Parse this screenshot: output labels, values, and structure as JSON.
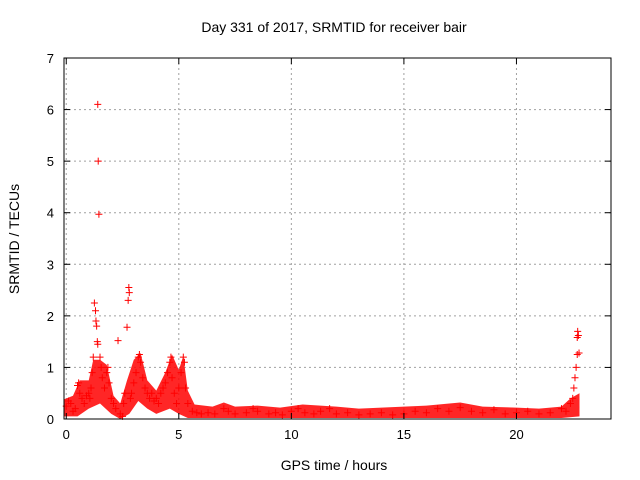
{
  "chart_data": {
    "type": "scatter",
    "title": "Day 331 of 2017, SRMTID for receiver bair",
    "xlabel": "GPS time / hours",
    "ylabel": "SRMTID / TECUs",
    "xlim": [
      -0.1,
      24.2
    ],
    "ylim": [
      0,
      7
    ],
    "xticks": [
      0,
      5,
      10,
      15,
      20
    ],
    "yticks": [
      0,
      1,
      2,
      3,
      4,
      5,
      6,
      7
    ],
    "grid": true,
    "marker": "+",
    "color": "#ff0000",
    "series": [
      {
        "name": "SRMTID",
        "points": [
          [
            0.0,
            0.25
          ],
          [
            0.1,
            0.35
          ],
          [
            0.2,
            0.3
          ],
          [
            0.3,
            0.15
          ],
          [
            0.4,
            0.2
          ],
          [
            0.5,
            0.65
          ],
          [
            0.55,
            0.7
          ],
          [
            0.6,
            0.5
          ],
          [
            0.7,
            0.4
          ],
          [
            0.8,
            0.3
          ],
          [
            0.9,
            0.45
          ],
          [
            1.0,
            0.5
          ],
          [
            1.05,
            0.4
          ],
          [
            1.1,
            0.6
          ],
          [
            1.15,
            0.9
          ],
          [
            1.2,
            1.2
          ],
          [
            1.25,
            2.25
          ],
          [
            1.3,
            2.1
          ],
          [
            1.32,
            1.9
          ],
          [
            1.35,
            1.8
          ],
          [
            1.38,
            1.5
          ],
          [
            1.4,
            1.45
          ],
          [
            1.4,
            6.1
          ],
          [
            1.42,
            5.0
          ],
          [
            1.45,
            3.97
          ],
          [
            1.5,
            1.2
          ],
          [
            1.55,
            1.0
          ],
          [
            1.6,
            0.8
          ],
          [
            1.7,
            0.6
          ],
          [
            1.8,
            0.9
          ],
          [
            1.85,
            1.0
          ],
          [
            1.9,
            0.7
          ],
          [
            2.0,
            0.4
          ],
          [
            2.1,
            0.3
          ],
          [
            2.2,
            0.2
          ],
          [
            2.3,
            1.52
          ],
          [
            2.4,
            0.1
          ],
          [
            2.5,
            0.05
          ],
          [
            2.55,
            0.3
          ],
          [
            2.6,
            0.5
          ],
          [
            2.7,
            1.78
          ],
          [
            2.75,
            2.3
          ],
          [
            2.78,
            2.55
          ],
          [
            2.8,
            2.45
          ],
          [
            2.85,
            0.4
          ],
          [
            2.9,
            0.5
          ],
          [
            3.0,
            0.7
          ],
          [
            3.1,
            0.9
          ],
          [
            3.2,
            1.2
          ],
          [
            3.25,
            1.25
          ],
          [
            3.3,
            1.1
          ],
          [
            3.4,
            0.8
          ],
          [
            3.5,
            0.6
          ],
          [
            3.6,
            0.5
          ],
          [
            3.7,
            0.4
          ],
          [
            3.8,
            0.5
          ],
          [
            3.9,
            0.35
          ],
          [
            4.0,
            0.4
          ],
          [
            4.1,
            0.3
          ],
          [
            4.2,
            0.5
          ],
          [
            4.3,
            0.6
          ],
          [
            4.4,
            0.7
          ],
          [
            4.5,
            0.9
          ],
          [
            4.6,
            1.1
          ],
          [
            4.65,
            1.2
          ],
          [
            4.7,
            0.8
          ],
          [
            4.8,
            0.5
          ],
          [
            4.9,
            0.3
          ],
          [
            5.0,
            0.6
          ],
          [
            5.1,
            0.9
          ],
          [
            5.2,
            1.2
          ],
          [
            5.25,
            1.1
          ],
          [
            5.3,
            0.6
          ],
          [
            5.4,
            0.3
          ],
          [
            5.6,
            0.15
          ],
          [
            5.8,
            0.12
          ],
          [
            6.0,
            0.1
          ],
          [
            6.3,
            0.12
          ],
          [
            6.6,
            0.1
          ],
          [
            7.0,
            0.2
          ],
          [
            7.2,
            0.15
          ],
          [
            7.5,
            0.1
          ],
          [
            8.0,
            0.12
          ],
          [
            8.3,
            0.2
          ],
          [
            8.5,
            0.15
          ],
          [
            9.0,
            0.1
          ],
          [
            9.3,
            0.12
          ],
          [
            9.6,
            0.08
          ],
          [
            10.0,
            0.15
          ],
          [
            10.3,
            0.2
          ],
          [
            10.6,
            0.12
          ],
          [
            11.0,
            0.1
          ],
          [
            11.3,
            0.15
          ],
          [
            11.7,
            0.2
          ],
          [
            12.0,
            0.1
          ],
          [
            12.5,
            0.12
          ],
          [
            13.0,
            0.08
          ],
          [
            13.5,
            0.1
          ],
          [
            14.0,
            0.12
          ],
          [
            14.5,
            0.08
          ],
          [
            15.0,
            0.1
          ],
          [
            15.5,
            0.15
          ],
          [
            16.0,
            0.12
          ],
          [
            16.5,
            0.2
          ],
          [
            17.0,
            0.15
          ],
          [
            17.5,
            0.22
          ],
          [
            18.0,
            0.15
          ],
          [
            18.5,
            0.12
          ],
          [
            19.0,
            0.18
          ],
          [
            19.5,
            0.1
          ],
          [
            20.0,
            0.12
          ],
          [
            20.5,
            0.15
          ],
          [
            21.0,
            0.1
          ],
          [
            21.5,
            0.12
          ],
          [
            22.0,
            0.2
          ],
          [
            22.2,
            0.15
          ],
          [
            22.4,
            0.3
          ],
          [
            22.5,
            0.4
          ],
          [
            22.55,
            0.6
          ],
          [
            22.6,
            0.8
          ],
          [
            22.65,
            1.0
          ],
          [
            22.7,
            1.25
          ],
          [
            22.7,
            1.58
          ],
          [
            22.72,
            1.7
          ],
          [
            22.75,
            1.62
          ],
          [
            22.78,
            1.28
          ]
        ],
        "band_top": [
          [
            -0.1,
            0.38
          ],
          [
            0.3,
            0.45
          ],
          [
            0.6,
            0.75
          ],
          [
            1.0,
            0.75
          ],
          [
            1.2,
            1.15
          ],
          [
            1.5,
            1.15
          ],
          [
            1.8,
            1.05
          ],
          [
            2.1,
            0.45
          ],
          [
            2.4,
            0.3
          ],
          [
            2.7,
            0.75
          ],
          [
            3.0,
            1.15
          ],
          [
            3.3,
            1.28
          ],
          [
            3.6,
            0.75
          ],
          [
            4.0,
            0.55
          ],
          [
            4.4,
            0.9
          ],
          [
            4.7,
            1.25
          ],
          [
            5.0,
            0.95
          ],
          [
            5.2,
            1.22
          ],
          [
            5.4,
            0.55
          ],
          [
            5.7,
            0.28
          ],
          [
            6.5,
            0.24
          ],
          [
            7.0,
            0.32
          ],
          [
            7.5,
            0.24
          ],
          [
            8.5,
            0.26
          ],
          [
            9.5,
            0.22
          ],
          [
            10.5,
            0.28
          ],
          [
            12.0,
            0.24
          ],
          [
            13.0,
            0.2
          ],
          [
            14.0,
            0.22
          ],
          [
            15.0,
            0.24
          ],
          [
            16.0,
            0.26
          ],
          [
            17.5,
            0.32
          ],
          [
            18.5,
            0.24
          ],
          [
            20.0,
            0.22
          ],
          [
            21.0,
            0.2
          ],
          [
            22.0,
            0.24
          ],
          [
            22.4,
            0.4
          ],
          [
            22.8,
            0.5
          ]
        ],
        "band_bottom": [
          [
            -0.1,
            0.05
          ],
          [
            0.5,
            0.05
          ],
          [
            1.0,
            0.2
          ],
          [
            1.5,
            0.3
          ],
          [
            2.0,
            0.1
          ],
          [
            2.4,
            0.0
          ],
          [
            2.8,
            0.1
          ],
          [
            3.2,
            0.35
          ],
          [
            3.6,
            0.2
          ],
          [
            4.0,
            0.1
          ],
          [
            4.6,
            0.2
          ],
          [
            5.0,
            0.1
          ],
          [
            5.4,
            0.02
          ],
          [
            6.0,
            0.02
          ],
          [
            12.0,
            0.02
          ],
          [
            18.0,
            0.02
          ],
          [
            22.0,
            0.02
          ],
          [
            22.8,
            0.05
          ]
        ]
      }
    ]
  }
}
